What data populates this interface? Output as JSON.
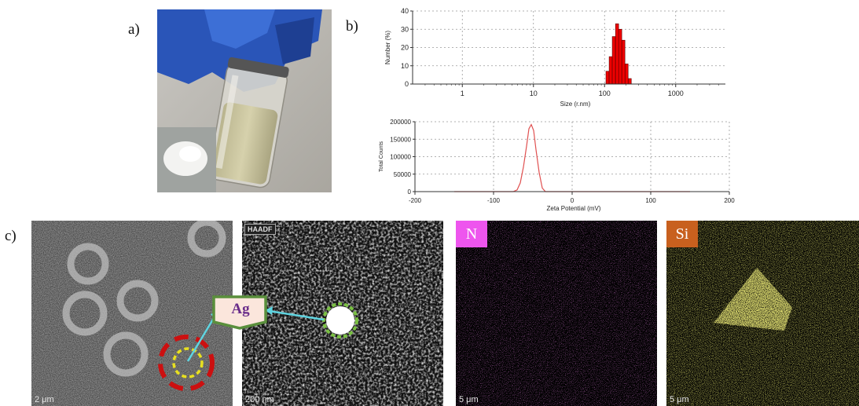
{
  "labels": {
    "a": "a)",
    "b": "b)",
    "c": "c)"
  },
  "overlay": {
    "ag": "Ag"
  },
  "micrographs": [
    {
      "scale": "2 μm"
    },
    {
      "scale": "200 nm",
      "tag": "HAADF"
    },
    {
      "scale": "5 μm",
      "element": "N",
      "badge_color": "#ee55ee",
      "dot_color": "#c93ac9"
    },
    {
      "scale": "5 μm",
      "element": "Si",
      "badge_color": "#c8601e",
      "dot_color": "#d4d32a"
    }
  ],
  "colors": {
    "bar_fill": "#ee0000",
    "zeta_line": "#e05050",
    "arrow": "#5fd4e0",
    "ag_box": "#5a8f3c",
    "red_ring": "#cc1010",
    "yellow_ring": "#e8e020",
    "green_ring": "#7ac043"
  },
  "chart_data": [
    {
      "type": "bar",
      "xlabel": "Size (r.nm)",
      "ylabel": "Number (%)",
      "xscale": "log",
      "xlim": [
        0.2,
        5000
      ],
      "ylim": [
        0,
        40
      ],
      "xticks": [
        1,
        10,
        100,
        1000
      ],
      "yticks": [
        0,
        10,
        20,
        30,
        40
      ],
      "grid": true,
      "bars": [
        {
          "x": 110,
          "y": 7
        },
        {
          "x": 122,
          "y": 15
        },
        {
          "x": 135,
          "y": 26
        },
        {
          "x": 150,
          "y": 33
        },
        {
          "x": 166,
          "y": 30
        },
        {
          "x": 184,
          "y": 24
        },
        {
          "x": 204,
          "y": 11
        },
        {
          "x": 226,
          "y": 3
        }
      ]
    },
    {
      "type": "line",
      "xlabel": "Zeta Potential (mV)",
      "ylabel": "Total Counts",
      "xlim": [
        -200,
        200
      ],
      "ylim": [
        0,
        200000
      ],
      "xticks": [
        -200,
        -100,
        0,
        100,
        200
      ],
      "yticks": [
        0,
        50000,
        100000,
        150000,
        200000
      ],
      "grid": true,
      "series": [
        {
          "x": [
            -150,
            -75,
            -70,
            -66,
            -62,
            -58,
            -55,
            -52,
            -49,
            -46,
            -42,
            -38,
            -34,
            50,
            150
          ],
          "y": [
            0,
            0,
            5000,
            25000,
            70000,
            130000,
            180000,
            192000,
            175000,
            120000,
            55000,
            10000,
            0,
            0,
            0
          ]
        }
      ]
    }
  ]
}
